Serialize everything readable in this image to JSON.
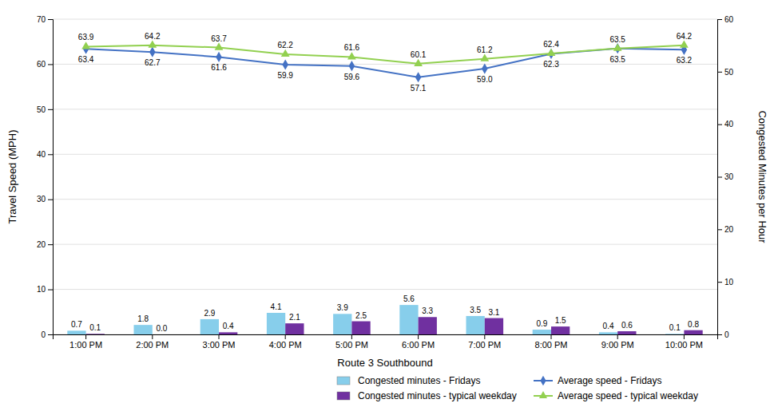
{
  "chart_data": {
    "type": "bar",
    "categories": [
      "1:00 PM",
      "2:00 PM",
      "3:00 PM",
      "4:00 PM",
      "5:00 PM",
      "6:00 PM",
      "7:00 PM",
      "8:00 PM",
      "9:00 PM",
      "10:00 PM"
    ],
    "xlabel": "Route 3 Southbound",
    "ylabel": "Travel Speed (MPH)",
    "y2label": "Congested Minutes per Hour",
    "ylim": [
      0,
      70
    ],
    "yticks": [
      0,
      10,
      20,
      30,
      40,
      50,
      60,
      70
    ],
    "y2lim": [
      0,
      60
    ],
    "y2ticks": [
      0,
      10,
      20,
      30,
      40,
      50,
      60
    ],
    "grid": true,
    "data_labels": true,
    "legend": "bottom-right",
    "series": [
      {
        "name": "Congested minutes - Fridays",
        "type": "bar",
        "axis": "y2",
        "color": "#87CEEB",
        "values": [
          0.7,
          1.8,
          2.9,
          4.1,
          3.9,
          5.6,
          3.5,
          0.9,
          0.4,
          0.1
        ],
        "value_labels": [
          "0.7",
          "1.8",
          "2.9",
          "4.1",
          "3.9",
          "5.6",
          "3.5",
          "0.9",
          "0.4",
          "0.1"
        ]
      },
      {
        "name": "Congested minutes - typical weekday",
        "type": "bar",
        "axis": "y2",
        "color": "#7030A0",
        "values": [
          0.1,
          0.0,
          0.4,
          2.1,
          2.5,
          3.3,
          3.1,
          1.5,
          0.6,
          0.8
        ],
        "value_labels": [
          "0.1",
          "0.0",
          "0.4",
          "2.1",
          "2.5",
          "3.3",
          "3.1",
          "1.5",
          "0.6",
          "0.8"
        ]
      },
      {
        "name": "Average speed - Fridays",
        "type": "line",
        "color": "#4472C4",
        "marker": "diamond",
        "values": [
          63.4,
          62.7,
          61.6,
          59.9,
          59.6,
          57.1,
          59.0,
          62.3,
          63.5,
          63.2
        ],
        "value_labels": [
          "63.4",
          "62.7",
          "61.6",
          "59.9",
          "59.6",
          "57.1",
          "59.0",
          "62.3",
          "63.5",
          "63.2"
        ]
      },
      {
        "name": "Average speed - typical weekday",
        "type": "line",
        "color": "#92D050",
        "marker": "triangle",
        "values": [
          63.9,
          64.2,
          63.7,
          62.2,
          61.6,
          60.1,
          61.2,
          62.4,
          63.5,
          64.2
        ],
        "value_labels": [
          "63.9",
          "64.2",
          "63.7",
          "62.2",
          "61.6",
          "60.1",
          "61.2",
          "62.4",
          "63.5",
          "64.2"
        ]
      }
    ]
  }
}
